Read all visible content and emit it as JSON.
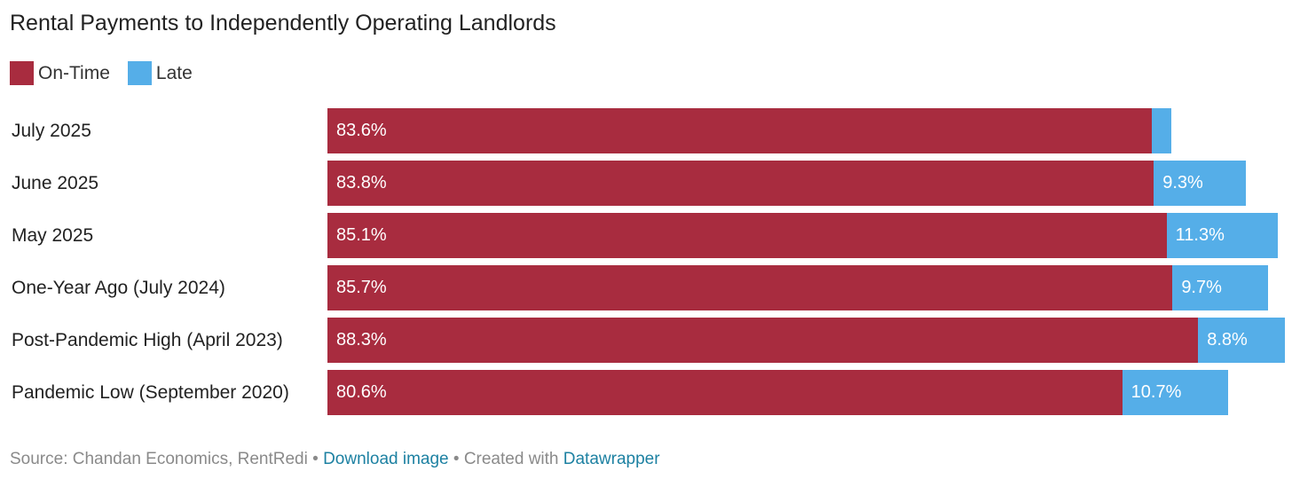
{
  "colors": {
    "on_time": "#a82c3f",
    "late": "#55aee8"
  },
  "chart_data": {
    "type": "bar",
    "orientation": "horizontal",
    "stacked": true,
    "title": "Rental Payments to Independently Operating Landlords",
    "legend": {
      "placement": "top-left"
    },
    "categories": [
      "July 2025",
      "June 2025",
      "May 2025",
      "One-Year Ago (July 2024)",
      "Post-Pandemic High (April 2023)",
      "Pandemic Low (September 2020)"
    ],
    "series": [
      {
        "name": "On-Time",
        "values": [
          83.6,
          83.8,
          85.1,
          85.7,
          88.3,
          80.6
        ],
        "labels": [
          "83.6%",
          "83.8%",
          "85.1%",
          "85.7%",
          "88.3%",
          "80.6%"
        ]
      },
      {
        "name": "Late",
        "values": [
          2.0,
          9.3,
          11.3,
          9.7,
          8.8,
          10.7
        ],
        "labels": [
          "",
          "9.3%",
          "11.3%",
          "9.7%",
          "8.8%",
          "10.7%"
        ]
      }
    ],
    "xlim": [
      0,
      97.1
    ]
  },
  "footer": {
    "source": "Source: Chandan Economics, RentRedi",
    "sep1": " • ",
    "download": "Download image",
    "sep2": " • Created with ",
    "datawrapper": "Datawrapper"
  }
}
